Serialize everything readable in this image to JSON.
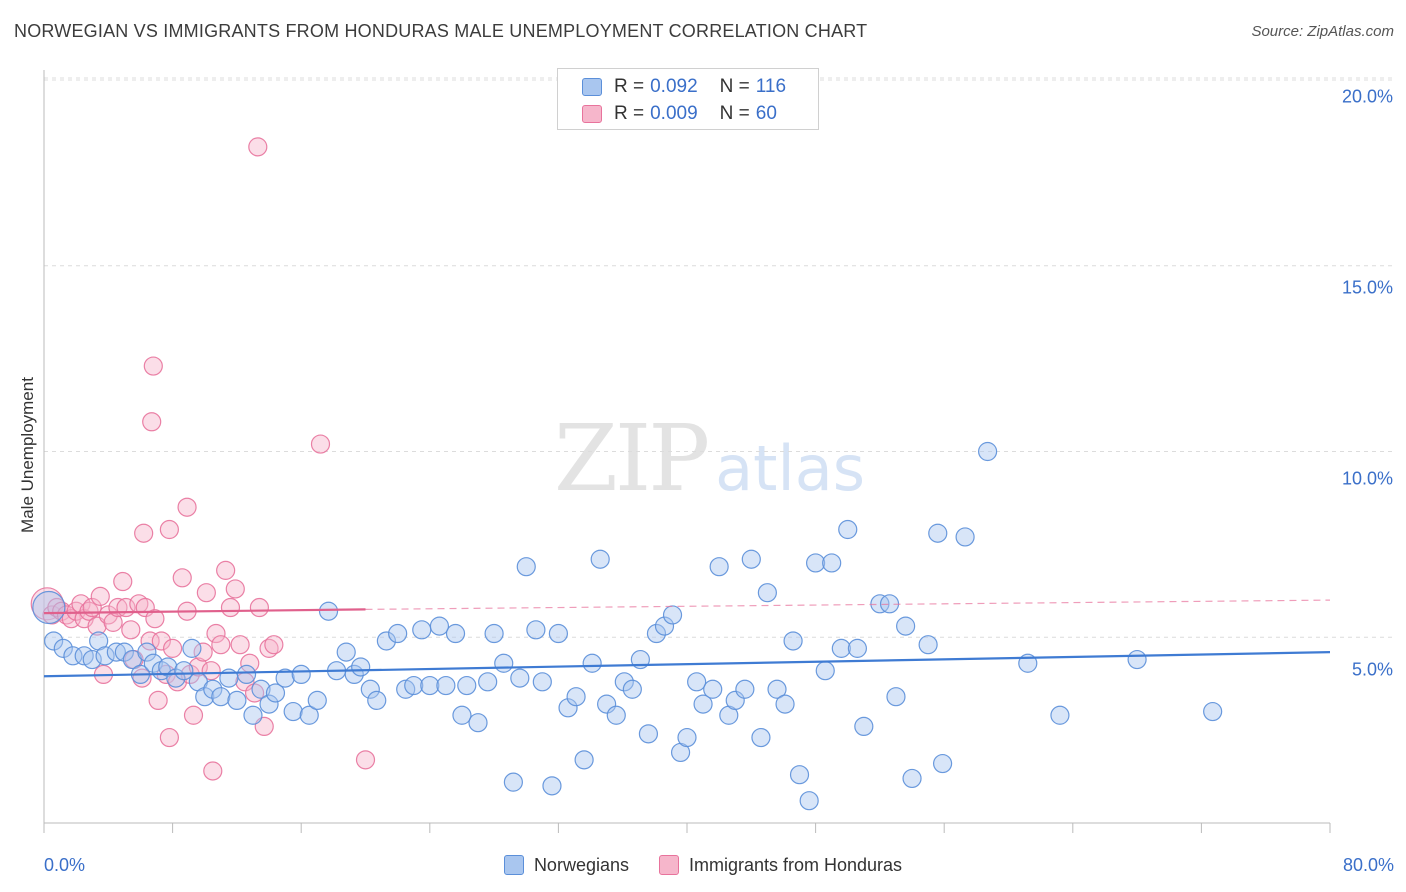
{
  "title": "NORWEGIAN VS IMMIGRANTS FROM HONDURAS MALE UNEMPLOYMENT CORRELATION CHART",
  "source": "Source: ZipAtlas.com",
  "watermark": {
    "zip": "ZIP",
    "atlas": "atlas"
  },
  "colors": {
    "blue": "#5b8fd9",
    "blue_fill": "#a9c6ef",
    "pink": "#e8739c",
    "pink_fill": "#f6b6cb",
    "tick_text": "#3a6fc9",
    "grid": "#dcdcdc"
  },
  "legend_top": {
    "rows": [
      {
        "r_label": "R =",
        "r_value": "0.092",
        "n_label": "N =",
        "n_value": "116"
      },
      {
        "r_label": "R =",
        "r_value": "0.009",
        "n_label": "N =",
        "n_value": "60"
      }
    ]
  },
  "legend_bottom": {
    "series1": "Norwegians",
    "series2": "Immigrants from Honduras"
  },
  "chart_data": {
    "type": "scatter",
    "title": "NORWEGIAN VS IMMIGRANTS FROM HONDURAS MALE UNEMPLOYMENT CORRELATION CHART",
    "xlabel": "",
    "ylabel": "Male Unemployment",
    "xlim": [
      0,
      80
    ],
    "ylim": [
      0,
      20.5
    ],
    "x_tick_labels": [
      "0.0%",
      "80.0%"
    ],
    "y_ticks": [
      5,
      10,
      15,
      20
    ],
    "y_tick_labels": [
      "5.0%",
      "10.0%",
      "15.0%",
      "20.0%"
    ],
    "grid": "horizontal dashed",
    "legend_position": "top-center",
    "series": [
      {
        "name": "Norwegians",
        "r": 0.092,
        "n": 116,
        "trend": {
          "x": [
            0,
            80
          ],
          "y": [
            3.95,
            4.6
          ]
        },
        "points": [
          [
            0.3,
            5.8
          ],
          [
            0.6,
            4.9
          ],
          [
            1.2,
            4.7
          ],
          [
            1.8,
            4.5
          ],
          [
            2.5,
            4.5
          ],
          [
            3.0,
            4.4
          ],
          [
            3.4,
            4.9
          ],
          [
            3.8,
            4.5
          ],
          [
            4.5,
            4.6
          ],
          [
            5.0,
            4.6
          ],
          [
            5.5,
            4.4
          ],
          [
            6.0,
            4.0
          ],
          [
            6.4,
            4.6
          ],
          [
            6.8,
            4.3
          ],
          [
            7.3,
            4.1
          ],
          [
            7.7,
            4.2
          ],
          [
            8.2,
            3.9
          ],
          [
            8.7,
            4.1
          ],
          [
            9.2,
            4.7
          ],
          [
            9.6,
            3.8
          ],
          [
            10.0,
            3.4
          ],
          [
            10.5,
            3.6
          ],
          [
            11.0,
            3.4
          ],
          [
            11.5,
            3.9
          ],
          [
            12.0,
            3.3
          ],
          [
            12.6,
            4.0
          ],
          [
            13.0,
            2.9
          ],
          [
            13.5,
            3.6
          ],
          [
            14.0,
            3.2
          ],
          [
            14.4,
            3.5
          ],
          [
            15.0,
            3.9
          ],
          [
            15.5,
            3.0
          ],
          [
            16.0,
            4.0
          ],
          [
            16.5,
            2.9
          ],
          [
            17.0,
            3.3
          ],
          [
            17.7,
            5.7
          ],
          [
            18.2,
            4.1
          ],
          [
            18.8,
            4.6
          ],
          [
            19.3,
            4.0
          ],
          [
            19.7,
            4.2
          ],
          [
            20.3,
            3.6
          ],
          [
            20.7,
            3.3
          ],
          [
            21.3,
            4.9
          ],
          [
            22.0,
            5.1
          ],
          [
            22.5,
            3.6
          ],
          [
            23.0,
            3.7
          ],
          [
            23.5,
            5.2
          ],
          [
            24.0,
            3.7
          ],
          [
            24.6,
            5.3
          ],
          [
            25.0,
            3.7
          ],
          [
            25.6,
            5.1
          ],
          [
            26.0,
            2.9
          ],
          [
            26.3,
            3.7
          ],
          [
            27.0,
            2.7
          ],
          [
            27.6,
            3.8
          ],
          [
            28.0,
            5.1
          ],
          [
            28.6,
            4.3
          ],
          [
            29.2,
            1.1
          ],
          [
            29.6,
            3.9
          ],
          [
            30.0,
            6.9
          ],
          [
            30.6,
            5.2
          ],
          [
            31.0,
            3.8
          ],
          [
            31.6,
            1.0
          ],
          [
            32.0,
            5.1
          ],
          [
            32.6,
            3.1
          ],
          [
            33.1,
            3.4
          ],
          [
            33.6,
            1.7
          ],
          [
            34.1,
            4.3
          ],
          [
            34.6,
            7.1
          ],
          [
            35.0,
            3.2
          ],
          [
            35.6,
            2.9
          ],
          [
            36.1,
            3.8
          ],
          [
            36.6,
            3.6
          ],
          [
            37.1,
            4.4
          ],
          [
            37.6,
            2.4
          ],
          [
            38.1,
            5.1
          ],
          [
            38.6,
            5.3
          ],
          [
            39.1,
            5.6
          ],
          [
            39.6,
            1.9
          ],
          [
            40.0,
            2.3
          ],
          [
            40.6,
            3.8
          ],
          [
            41.0,
            3.2
          ],
          [
            41.6,
            3.6
          ],
          [
            42.0,
            6.9
          ],
          [
            42.6,
            2.9
          ],
          [
            43.0,
            3.3
          ],
          [
            43.6,
            3.6
          ],
          [
            44.0,
            7.1
          ],
          [
            44.6,
            2.3
          ],
          [
            45.0,
            6.2
          ],
          [
            45.6,
            3.6
          ],
          [
            46.1,
            3.2
          ],
          [
            46.6,
            4.9
          ],
          [
            47.0,
            1.3
          ],
          [
            47.6,
            0.6
          ],
          [
            48.0,
            7.0
          ],
          [
            48.6,
            4.1
          ],
          [
            49.0,
            7.0
          ],
          [
            49.6,
            4.7
          ],
          [
            50.0,
            7.9
          ],
          [
            50.6,
            4.7
          ],
          [
            51.0,
            2.6
          ],
          [
            52.0,
            5.9
          ],
          [
            52.6,
            5.9
          ],
          [
            53.0,
            3.4
          ],
          [
            53.6,
            5.3
          ],
          [
            54.0,
            1.2
          ],
          [
            55.0,
            4.8
          ],
          [
            55.6,
            7.8
          ],
          [
            55.9,
            1.6
          ],
          [
            57.3,
            7.7
          ],
          [
            58.7,
            10.0
          ],
          [
            61.2,
            4.3
          ],
          [
            63.2,
            2.9
          ],
          [
            68.0,
            4.4
          ],
          [
            72.7,
            3.0
          ]
        ]
      },
      {
        "name": "Immigrants from Honduras",
        "r": 0.009,
        "n": 60,
        "trend": {
          "x": [
            0,
            20
          ],
          "y": [
            5.65,
            5.75
          ]
        },
        "trend_dashed": {
          "x": [
            20,
            80
          ],
          "y": [
            5.75,
            6.0
          ]
        },
        "points": [
          [
            0.2,
            5.9
          ],
          [
            0.5,
            5.6
          ],
          [
            0.8,
            5.8
          ],
          [
            1.1,
            5.7
          ],
          [
            1.4,
            5.6
          ],
          [
            1.7,
            5.5
          ],
          [
            2.0,
            5.7
          ],
          [
            2.3,
            5.9
          ],
          [
            2.5,
            5.5
          ],
          [
            2.8,
            5.7
          ],
          [
            3.0,
            5.8
          ],
          [
            3.3,
            5.3
          ],
          [
            3.5,
            6.1
          ],
          [
            3.7,
            4.0
          ],
          [
            4.0,
            5.6
          ],
          [
            4.3,
            5.4
          ],
          [
            4.6,
            5.8
          ],
          [
            4.9,
            6.5
          ],
          [
            5.1,
            5.8
          ],
          [
            5.4,
            5.2
          ],
          [
            5.6,
            4.4
          ],
          [
            5.9,
            5.9
          ],
          [
            6.1,
            3.9
          ],
          [
            6.3,
            5.8
          ],
          [
            6.6,
            4.9
          ],
          [
            6.9,
            5.5
          ],
          [
            7.1,
            3.3
          ],
          [
            7.3,
            4.9
          ],
          [
            7.6,
            4.0
          ],
          [
            7.8,
            2.3
          ],
          [
            8.0,
            4.7
          ],
          [
            8.3,
            3.8
          ],
          [
            8.6,
            6.6
          ],
          [
            8.9,
            5.7
          ],
          [
            9.1,
            4.0
          ],
          [
            9.3,
            2.9
          ],
          [
            9.6,
            4.2
          ],
          [
            9.9,
            4.6
          ],
          [
            10.1,
            6.2
          ],
          [
            10.4,
            4.1
          ],
          [
            10.7,
            5.1
          ],
          [
            11.0,
            4.8
          ],
          [
            11.3,
            6.8
          ],
          [
            11.6,
            5.8
          ],
          [
            11.9,
            6.3
          ],
          [
            12.2,
            4.8
          ],
          [
            12.5,
            3.8
          ],
          [
            12.8,
            4.3
          ],
          [
            13.1,
            3.5
          ],
          [
            13.4,
            5.8
          ],
          [
            13.7,
            2.6
          ],
          [
            14.0,
            4.7
          ],
          [
            14.3,
            4.8
          ],
          [
            6.8,
            12.3
          ],
          [
            6.7,
            10.8
          ],
          [
            8.9,
            8.5
          ],
          [
            6.2,
            7.8
          ],
          [
            7.8,
            7.9
          ],
          [
            10.5,
            1.4
          ],
          [
            20.0,
            1.7
          ]
        ],
        "outliers": [
          [
            13.3,
            18.2
          ],
          [
            17.2,
            10.2
          ]
        ]
      }
    ]
  }
}
